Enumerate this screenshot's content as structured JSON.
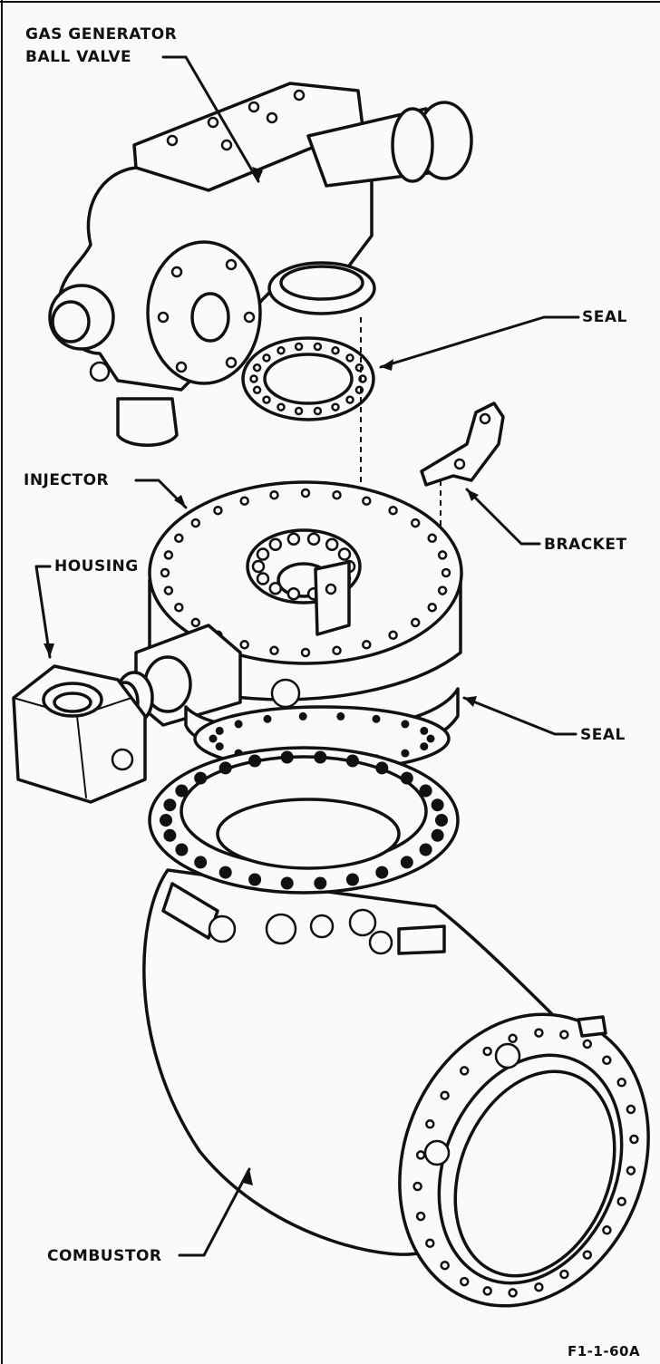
{
  "labels": {
    "gas_generator_ball_valve": [
      "GAS GENERATOR",
      "BALL VALVE"
    ],
    "seal_top": "SEAL",
    "injector": "INJECTOR",
    "bracket": "BRACKET",
    "housing": "HOUSING",
    "seal_bottom": "SEAL",
    "combustor": "COMBUSTOR",
    "figure_id": "F1-1-60A"
  }
}
